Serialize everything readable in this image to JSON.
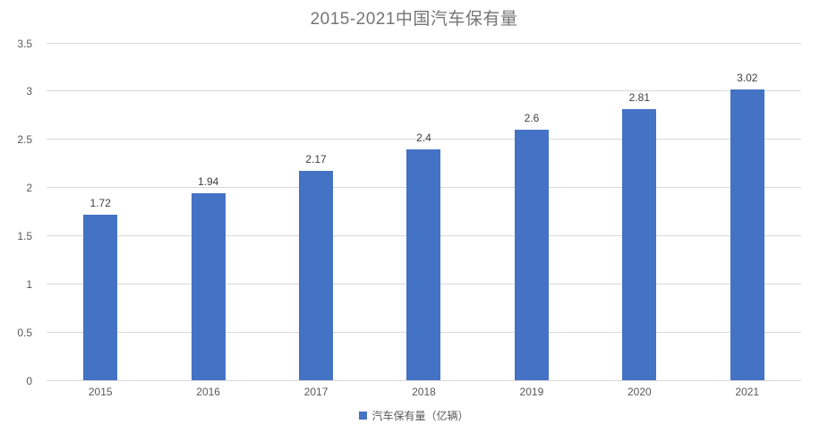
{
  "chart_data": {
    "type": "bar",
    "title": "2015-2021中国汽车保有量",
    "categories": [
      "2015",
      "2016",
      "2017",
      "2018",
      "2019",
      "2020",
      "2021"
    ],
    "values": [
      1.72,
      1.94,
      2.17,
      2.4,
      2.6,
      2.81,
      3.02
    ],
    "value_labels": [
      "1.72",
      "1.94",
      "2.17",
      "2.4",
      "2.6",
      "2.81",
      "3.02"
    ],
    "series_name": "汽车保有量（亿辆）",
    "legend": "汽车保有量（亿辆）",
    "legend_position": "bottom-center",
    "xlabel": "",
    "ylabel": "",
    "ylim": [
      0,
      3.5
    ],
    "y_ticks": [
      "0",
      "0.5",
      "1",
      "1.5",
      "2",
      "2.5",
      "3",
      "3.5"
    ],
    "grid": "horizontal",
    "colors": {
      "bar": "#4472c4",
      "gridline": "#d9d9d9",
      "title_text": "#757575",
      "axis_text": "#595959",
      "data_label_text": "#404040",
      "background": "#ffffff"
    }
  }
}
